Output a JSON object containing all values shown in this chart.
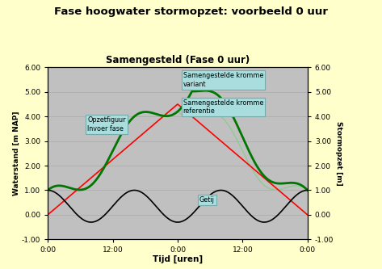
{
  "title_outer": "Fase hoogwater stormopzet: voorbeeld 0 uur",
  "title_inner": "Samengesteld (Fase 0 uur)",
  "xlabel": "Tijd [uren]",
  "ylabel_left": "Waterstand [m NAP]",
  "ylabel_right": "Stormopzet [m]",
  "ylim": [
    -1.0,
    6.0
  ],
  "yticks": [
    -1.0,
    0.0,
    1.0,
    2.0,
    3.0,
    4.0,
    5.0,
    6.0
  ],
  "xtick_positions": [
    0,
    12,
    24,
    36,
    48,
    60,
    72
  ],
  "xtick_labels": [
    "0:00",
    "12:00",
    "0:00",
    "12:00",
    "0:00",
    "",
    ""
  ],
  "xtick_labels_show": [
    0,
    12,
    24,
    36,
    48
  ],
  "xtick_labels_text": [
    "0:00",
    "12:00",
    "0:00",
    "12:00",
    "0:00"
  ],
  "background_outer": "#ffffcc",
  "background_inner": "#c0c0c0",
  "annotation_variant": "Samengestelde kromme\nvariant",
  "annotation_referentie": "Samengestelde kromme\nreferentie",
  "annotation_opzet": "Opzetfiguur\nInvoer fase",
  "annotation_getij": "Getij",
  "color_tide": "#000000",
  "color_opzet": "#ff0000",
  "color_samen_ref": "#88cc88",
  "color_samen_var": "#007700",
  "color_annotation_bg": "#aadddd",
  "n_points": 1000
}
